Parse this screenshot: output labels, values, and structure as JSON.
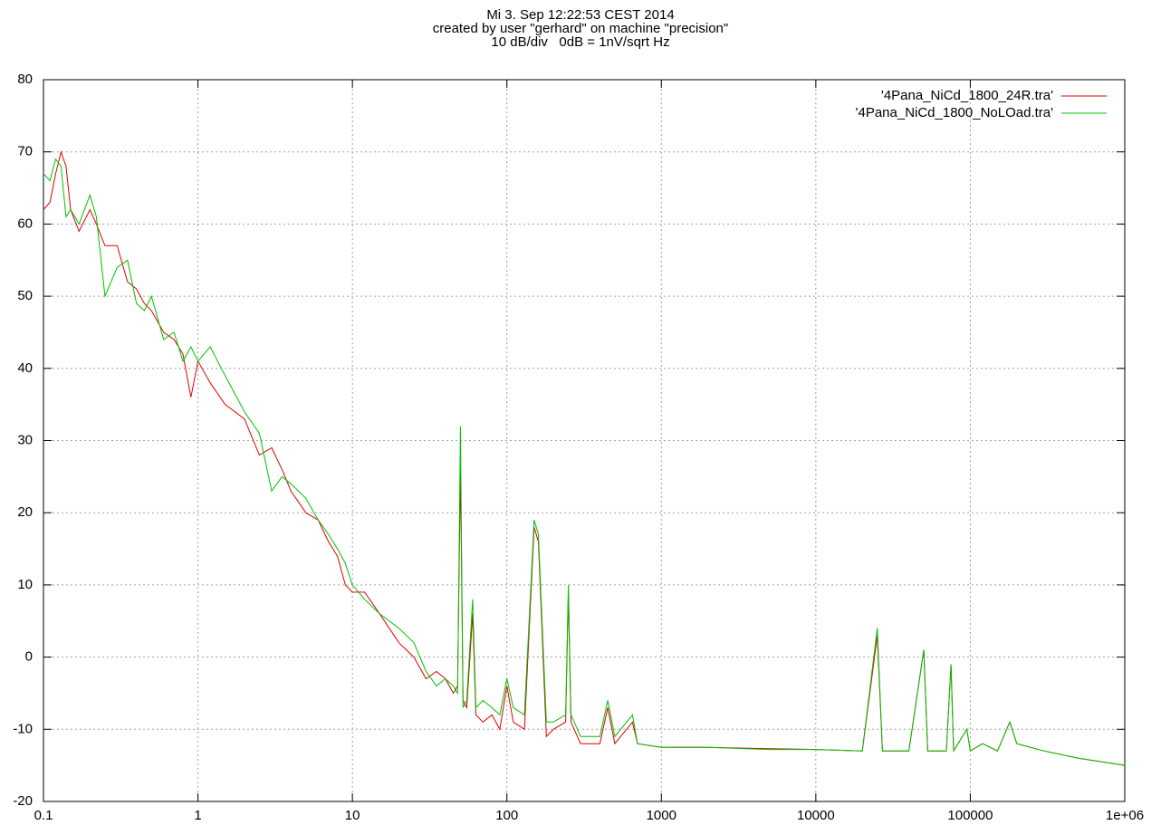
{
  "chart_data": {
    "type": "line",
    "title": "Mi 3. Sep 12:22:53 CEST 2014",
    "subtitle": [
      "created by user \"gerhard\" on machine \"precision\"",
      "10 dB/div   0dB = 1nV/sqrt Hz"
    ],
    "xscale": "log",
    "grid": true,
    "legend": "top-right",
    "x": [
      0.1,
      0.11,
      0.12,
      0.13,
      0.14,
      0.15,
      0.17,
      0.2,
      0.22,
      0.25,
      0.3,
      0.35,
      0.4,
      0.45,
      0.5,
      0.6,
      0.7,
      0.8,
      0.9,
      1,
      1.2,
      1.5,
      2,
      2.5,
      3,
      3.5,
      4,
      5,
      6,
      7,
      8,
      9,
      10,
      12,
      15,
      20,
      25,
      30,
      35,
      40,
      45,
      48,
      50,
      52,
      55,
      60,
      63,
      70,
      80,
      90,
      100,
      110,
      130,
      150,
      160,
      180,
      200,
      240,
      250,
      260,
      300,
      400,
      450,
      500,
      650,
      700,
      1000,
      2000,
      5000,
      10000,
      20000,
      25000,
      27000,
      40000,
      50000,
      53000,
      70000,
      75000,
      78000,
      95000,
      100000,
      120000,
      150000,
      180000,
      200000,
      300000,
      500000,
      1000000
    ],
    "series": [
      {
        "name": "'4Pana_NiCd_1800_24R.tra'",
        "color": "#e00000",
        "values": [
          62,
          63,
          67,
          70,
          68,
          62,
          59,
          62,
          60,
          57,
          57,
          52,
          51,
          49,
          48,
          45,
          44,
          42,
          36,
          41,
          38,
          35,
          33,
          28,
          29,
          26,
          23,
          20,
          19,
          16,
          14,
          10,
          9,
          9,
          6,
          2,
          0,
          -3,
          -2,
          -3,
          -5,
          -4,
          26,
          -6,
          -7,
          6,
          -8,
          -9,
          -8,
          -10,
          -4,
          -9,
          -10,
          18,
          16,
          -11,
          -10,
          -9,
          9,
          -9,
          -12,
          -12,
          -7,
          -12,
          -9,
          -12,
          -12.5,
          -12.5,
          -12.7,
          -12.8,
          -13,
          3,
          -13,
          -13,
          1,
          -13,
          -13,
          -1,
          -13,
          -10,
          -13,
          -12,
          -13,
          -9,
          -12,
          -13,
          -14,
          -15
        ]
      },
      {
        "name": "'4Pana_NiCd_1800_NoLOad.tra'",
        "color": "#00c000",
        "values": [
          67,
          66,
          69,
          68,
          61,
          62,
          60,
          64,
          61,
          50,
          54,
          55,
          49,
          48,
          50,
          44,
          45,
          41,
          43,
          41,
          43,
          39,
          34,
          31,
          23,
          25,
          24,
          22,
          19,
          17,
          15,
          13,
          10,
          8,
          6,
          4,
          2,
          -2,
          -4,
          -3,
          -4,
          -5,
          32,
          -7,
          -6,
          8,
          -7,
          -6,
          -7,
          -8,
          -3,
          -7,
          -8,
          19,
          17,
          -9,
          -9,
          -8,
          10,
          -8,
          -11,
          -11,
          -6,
          -11,
          -8,
          -12,
          -12.5,
          -12.5,
          -12.8,
          -12.8,
          -13,
          4,
          -13,
          -13,
          1,
          -13,
          -13,
          -1,
          -13,
          -10,
          -13,
          -12,
          -13,
          -9,
          -12,
          -13,
          -14,
          -15
        ]
      }
    ],
    "xlim": [
      0.1,
      1000000
    ],
    "xticks": [
      0.1,
      1,
      10,
      100,
      1000,
      10000,
      100000,
      {
        "value": 1000000,
        "label": "1e+06"
      }
    ],
    "ylim": [
      -20,
      80
    ],
    "yticks": [
      -20,
      -10,
      0,
      10,
      20,
      30,
      40,
      50,
      60,
      70,
      80
    ]
  }
}
